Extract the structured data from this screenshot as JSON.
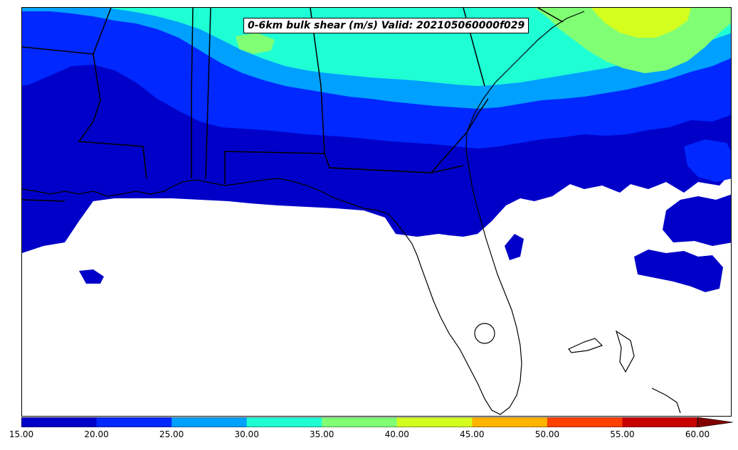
{
  "map": {
    "title": "0-6km bulk shear (m/s) Valid: 202105060000f029",
    "region": "Southeastern United States and Gulf of Mexico",
    "field": "0-6km bulk shear",
    "units": "m/s"
  },
  "colorbar": {
    "levels": [
      "15.00",
      "20.00",
      "25.00",
      "30.00",
      "35.00",
      "40.00",
      "45.00",
      "50.00",
      "55.00",
      "60.00"
    ],
    "colors": [
      "#0000c8",
      "#0028ff",
      "#00a0ff",
      "#1effd4",
      "#80ff74",
      "#d4ff1e",
      "#ffb400",
      "#ff4000",
      "#c80000",
      "#800000"
    ],
    "extend": "max"
  }
}
